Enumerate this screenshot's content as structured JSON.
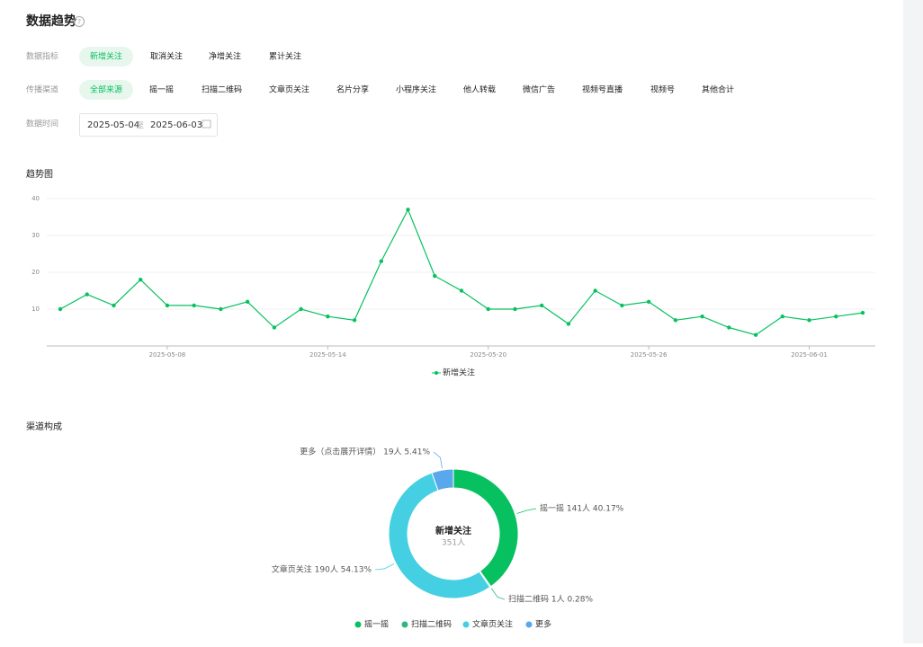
{
  "header": {
    "title": "数据趋势"
  },
  "filters": [
    {
      "label": "数据指标",
      "options": [
        "新增关注",
        "取消关注",
        "净增关注",
        "累计关注"
      ],
      "selected": 0
    },
    {
      "label": "传播渠道",
      "options": [
        "全部来源",
        "摇一摇",
        "扫描二维码",
        "文章页关注",
        "名片分享",
        "小程序关注",
        "他人转载",
        "微信广告",
        "视频号直播",
        "视频号",
        "其他合计"
      ],
      "selected": 0
    }
  ],
  "date_range": {
    "label": "数据时间",
    "start": "2025-05-04",
    "separator": "至",
    "end": "2025-06-03"
  },
  "chart_data": [
    {
      "type": "line",
      "title": "趋势图",
      "x": [
        "2025-05-04",
        "2025-05-05",
        "2025-05-06",
        "2025-05-07",
        "2025-05-08",
        "2025-05-09",
        "2025-05-10",
        "2025-05-11",
        "2025-05-12",
        "2025-05-13",
        "2025-05-14",
        "2025-05-15",
        "2025-05-16",
        "2025-05-17",
        "2025-05-18",
        "2025-05-19",
        "2025-05-20",
        "2025-05-21",
        "2025-05-22",
        "2025-05-23",
        "2025-05-24",
        "2025-05-25",
        "2025-05-26",
        "2025-05-27",
        "2025-05-28",
        "2025-05-29",
        "2025-05-30",
        "2025-05-31",
        "2025-06-01",
        "2025-06-02",
        "2025-06-03"
      ],
      "xticks": [
        "2025-05-08",
        "2025-05-14",
        "2025-05-20",
        "2025-05-26",
        "2025-06-01"
      ],
      "series": [
        {
          "name": "新增关注",
          "color": "#07c160",
          "values": [
            10,
            14,
            11,
            18,
            11,
            11,
            10,
            12,
            5,
            10,
            8,
            7,
            23,
            37,
            19,
            15,
            10,
            10,
            11,
            6,
            15,
            11,
            12,
            7,
            8,
            5,
            3,
            8,
            7,
            8,
            9
          ]
        }
      ],
      "ylim": [
        0,
        40
      ],
      "yticks": [
        10,
        20,
        30,
        40
      ],
      "grid": true
    },
    {
      "type": "pie",
      "title": "渠道构成",
      "center_title": "新增关注",
      "center_text": "351人",
      "categories": [
        "摇一摇",
        "扫描二维码",
        "文章页关注",
        "更多"
      ],
      "values": [
        141,
        1,
        190,
        19
      ],
      "value_labels": [
        "摇一摇 141人 40.17%",
        "扫描二维码 1人 0.28%",
        "文章页关注 190人 54.13%",
        "更多（点击展开详情） 19人 5.41%"
      ],
      "colors": [
        "#07c160",
        "#2fb67e",
        "#44cfe2",
        "#5aa8ec"
      ]
    }
  ]
}
